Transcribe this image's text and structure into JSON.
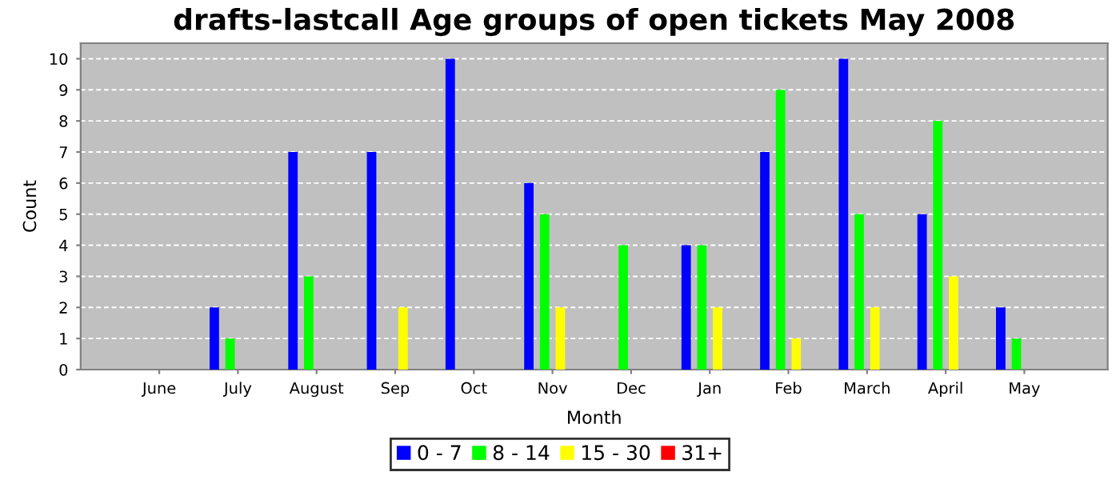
{
  "chart_data": {
    "type": "bar",
    "title": "drafts-lastcall Age groups of open tickets May 2008",
    "xlabel": "Month",
    "ylabel": "Count",
    "categories": [
      "June",
      "July",
      "August",
      "Sep",
      "Oct",
      "Nov",
      "Dec",
      "Jan",
      "Feb",
      "March",
      "April",
      "May"
    ],
    "series": [
      {
        "name": "0 - 7",
        "color": "#0000ff",
        "values": [
          0,
          2,
          7,
          7,
          10,
          6,
          0,
          4,
          7,
          10,
          5,
          2
        ]
      },
      {
        "name": "8 - 14",
        "color": "#00ff00",
        "values": [
          0,
          1,
          3,
          0,
          0,
          5,
          4,
          4,
          9,
          5,
          8,
          1
        ]
      },
      {
        "name": "15 - 30",
        "color": "#ffff00",
        "values": [
          0,
          0,
          0,
          2,
          0,
          2,
          0,
          2,
          1,
          2,
          3,
          0
        ]
      },
      {
        "name": "31+",
        "color": "#ff0000",
        "values": [
          0,
          0,
          0,
          0,
          0,
          0,
          0,
          0,
          0,
          0,
          0,
          0
        ]
      }
    ],
    "ylim": [
      0,
      10.5
    ],
    "yticks": [
      0,
      1,
      2,
      3,
      4,
      5,
      6,
      7,
      8,
      9,
      10
    ],
    "grid": "y",
    "legend": "bottom"
  }
}
